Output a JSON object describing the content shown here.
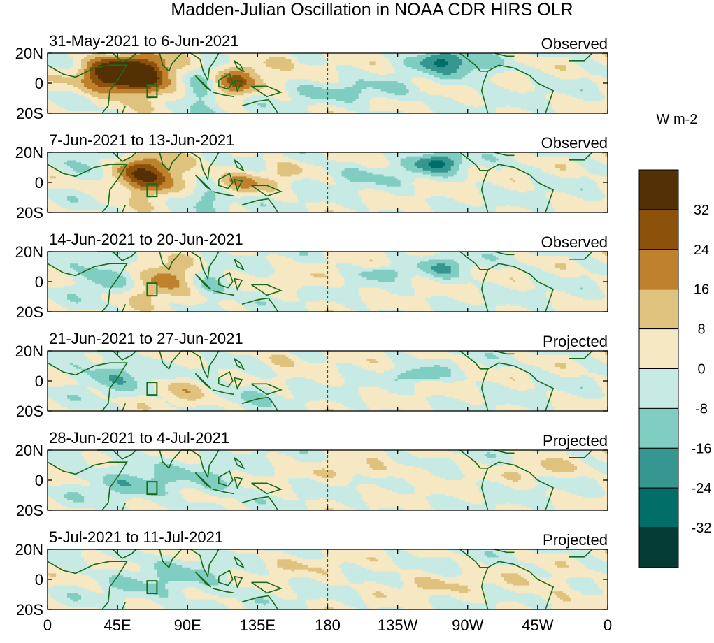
{
  "chart_data": {
    "type": "heatmap",
    "title": "Madden-Julian Oscillation in NOAA CDR HIRS OLR",
    "units_label": "W m-2",
    "x_ticks": [
      "0",
      "45E",
      "90E",
      "135E",
      "180",
      "135W",
      "90W",
      "45W",
      "0"
    ],
    "y_ticks": [
      "20N",
      "0",
      "20S"
    ],
    "lon_range": [
      0,
      360
    ],
    "lat_range": [
      -20,
      20
    ],
    "levels": [
      -40,
      -32,
      -24,
      -16,
      -8,
      0,
      8,
      16,
      24,
      32,
      40
    ],
    "colorbar_labels": [
      "32",
      "24",
      "16",
      "8",
      "0",
      "-8",
      "-16",
      "-24",
      "-32"
    ],
    "colors": [
      "#023c34",
      "#016e68",
      "#35978f",
      "#80cdc1",
      "#c7eae5",
      "#f6e8c3",
      "#dfc27d",
      "#bf812d",
      "#8c510a",
      "#543005"
    ],
    "coast_color": "#1a6b1a",
    "panels": [
      {
        "date_range": "31-May-2021 to 6-Jun-2021",
        "status": "Observed",
        "anomalies": [
          {
            "lon": 57,
            "lat": 5,
            "amp": 44,
            "slon": 18,
            "slat": 9
          },
          {
            "lon": 40,
            "lat": 6,
            "amp": 18,
            "slon": 14,
            "slat": 8
          },
          {
            "lon": 118,
            "lat": 0,
            "amp": 22,
            "slon": 12,
            "slat": 6
          },
          {
            "lon": 130,
            "lat": 10,
            "amp": 12,
            "slon": 10,
            "slat": 5
          },
          {
            "lon": 97,
            "lat": -5,
            "amp": -20,
            "slon": 8,
            "slat": 10
          },
          {
            "lon": 150,
            "lat": 15,
            "amp": 10,
            "slon": 8,
            "slat": 4
          },
          {
            "lon": 250,
            "lat": 16,
            "amp": -22,
            "slon": 12,
            "slat": 5
          },
          {
            "lon": 270,
            "lat": 10,
            "amp": -12,
            "slon": 14,
            "slat": 6
          },
          {
            "lon": 200,
            "lat": -6,
            "amp": -9,
            "slon": 30,
            "slat": 5
          }
        ]
      },
      {
        "date_range": "7-Jun-2021 to 13-Jun-2021",
        "status": "Observed",
        "anomalies": [
          {
            "lon": 65,
            "lat": 4,
            "amp": 34,
            "slon": 16,
            "slat": 9
          },
          {
            "lon": 125,
            "lat": 0,
            "amp": 14,
            "slon": 14,
            "slat": 6
          },
          {
            "lon": 100,
            "lat": -10,
            "amp": -16,
            "slon": 12,
            "slat": 6
          },
          {
            "lon": 30,
            "lat": 10,
            "amp": -12,
            "slon": 10,
            "slat": 6
          },
          {
            "lon": 250,
            "lat": 14,
            "amp": -24,
            "slon": 12,
            "slat": 5
          },
          {
            "lon": 200,
            "lat": 5,
            "amp": -8,
            "slon": 25,
            "slat": 5
          },
          {
            "lon": 155,
            "lat": 8,
            "amp": 8,
            "slon": 10,
            "slat": 5
          }
        ]
      },
      {
        "date_range": "14-Jun-2021 to 20-Jun-2021",
        "status": "Observed",
        "anomalies": [
          {
            "lon": 78,
            "lat": 3,
            "amp": 24,
            "slon": 10,
            "slat": 7
          },
          {
            "lon": 60,
            "lat": -8,
            "amp": 10,
            "slon": 12,
            "slat": 5
          },
          {
            "lon": 35,
            "lat": 5,
            "amp": -14,
            "slon": 12,
            "slat": 8
          },
          {
            "lon": 105,
            "lat": -5,
            "amp": -10,
            "slon": 10,
            "slat": 6
          },
          {
            "lon": 160,
            "lat": 0,
            "amp": 9,
            "slon": 10,
            "slat": 4
          },
          {
            "lon": 215,
            "lat": 6,
            "amp": -14,
            "slon": 8,
            "slat": 3
          },
          {
            "lon": 255,
            "lat": 10,
            "amp": -12,
            "slon": 12,
            "slat": 6
          }
        ]
      },
      {
        "date_range": "21-Jun-2021 to 27-Jun-2021",
        "status": "Projected",
        "anomalies": [
          {
            "lon": 42,
            "lat": 5,
            "amp": -14,
            "slon": 16,
            "slat": 7
          },
          {
            "lon": 85,
            "lat": -5,
            "amp": 10,
            "slon": 12,
            "slat": 6
          },
          {
            "lon": 150,
            "lat": 15,
            "amp": 9,
            "slon": 10,
            "slat": 4
          },
          {
            "lon": 240,
            "lat": 4,
            "amp": -16,
            "slon": 10,
            "slat": 3
          },
          {
            "lon": 130,
            "lat": -8,
            "amp": -8,
            "slon": 15,
            "slat": 5
          }
        ]
      },
      {
        "date_range": "28-Jun-2021 to 4-Jul-2021",
        "status": "Projected",
        "anomalies": [
          {
            "lon": 60,
            "lat": 0,
            "amp": -10,
            "slon": 25,
            "slat": 10
          },
          {
            "lon": 110,
            "lat": -2,
            "amp": -8,
            "slon": 12,
            "slat": 6
          },
          {
            "lon": 210,
            "lat": 5,
            "amp": 7,
            "slon": 25,
            "slat": 4
          },
          {
            "lon": 320,
            "lat": 8,
            "amp": 7,
            "slon": 18,
            "slat": 5
          }
        ]
      },
      {
        "date_range": "5-Jul-2021 to 11-Jul-2021",
        "status": "Projected",
        "anomalies": [
          {
            "lon": 80,
            "lat": 0,
            "amp": -8,
            "slon": 30,
            "slat": 12
          },
          {
            "lon": 150,
            "lat": 10,
            "amp": 6,
            "slon": 20,
            "slat": 5
          },
          {
            "lon": 240,
            "lat": -3,
            "amp": 6,
            "slon": 25,
            "slat": 5
          },
          {
            "lon": 320,
            "lat": -5,
            "amp": 7,
            "slon": 20,
            "slat": 6
          }
        ]
      }
    ]
  }
}
